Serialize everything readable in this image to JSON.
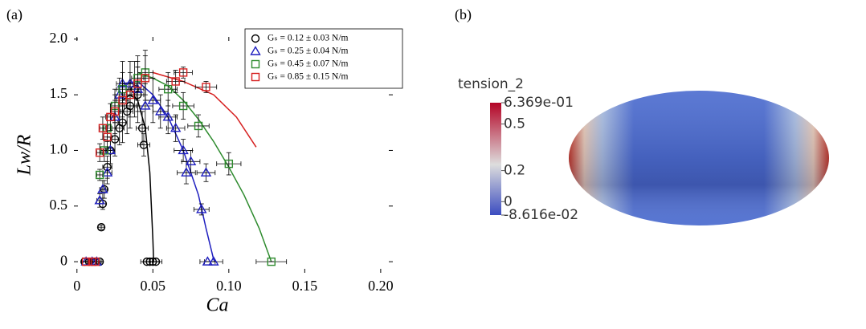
{
  "chart_data": [
    {
      "type": "scatter",
      "panel": "(a)",
      "xlabel": "Ca",
      "ylabel": "Lw/R",
      "xlim": [
        -0.002,
        0.208
      ],
      "ylim": [
        -0.1,
        2.02
      ],
      "xticks": [
        0,
        0.05,
        {
          "value": 0.1,
          "label": "0.10"
        },
        0.15,
        {
          "value": 0.2,
          "label": "0.20"
        }
      ],
      "yticks": [
        0,
        0.5,
        {
          "value": 1,
          "label": "1.0"
        },
        1.5,
        {
          "value": 2,
          "label": "2.0"
        }
      ],
      "legend": "upper right",
      "series": [
        {
          "name": "Gₛ = 0.12 ± 0.03 N/m",
          "color": "#000000",
          "marker": "circle",
          "x": [
            0.005,
            0.008,
            0.01,
            0.012,
            0.015,
            0.016,
            0.017,
            0.018,
            0.02,
            0.022,
            0.025,
            0.028,
            0.03,
            0.033,
            0.035,
            0.038,
            0.04,
            0.043,
            0.044,
            0.046,
            0.048,
            0.05,
            0.052
          ],
          "values": [
            0,
            0,
            0,
            0,
            0,
            0.31,
            0.52,
            0.65,
            0.85,
            1.0,
            1.1,
            1.2,
            1.25,
            1.35,
            1.4,
            1.55,
            1.5,
            1.2,
            1.05,
            0,
            0,
            0,
            0
          ],
          "xerr": [
            0.002,
            0.002,
            0.002,
            0.002,
            0.002,
            0.002,
            0.002,
            0.002,
            0.003,
            0.003,
            0.003,
            0.003,
            0.003,
            0.004,
            0.004,
            0.004,
            0.004,
            0.004,
            0.004,
            0.004,
            0.004,
            0.004,
            0.004
          ],
          "yerr": [
            0,
            0,
            0,
            0,
            0,
            0.02,
            0.05,
            0.08,
            0.1,
            0.12,
            0.15,
            0.15,
            0.18,
            0.2,
            0.2,
            0.25,
            0.25,
            0.15,
            0.1,
            0,
            0,
            0,
            0
          ]
        },
        {
          "name": "Gₛ = 0.25 ± 0.04 N/m",
          "color": "#1f1fbf",
          "marker": "triangle",
          "x": [
            0.006,
            0.01,
            0.013,
            0.015,
            0.017,
            0.02,
            0.022,
            0.025,
            0.028,
            0.03,
            0.035,
            0.04,
            0.045,
            0.05,
            0.055,
            0.06,
            0.065,
            0.07,
            0.072,
            0.075,
            0.085,
            0.082,
            0.086,
            0.09
          ],
          "values": [
            0,
            0,
            0,
            0.55,
            0.65,
            0.8,
            1.0,
            1.3,
            1.5,
            1.6,
            1.6,
            1.55,
            1.4,
            1.45,
            1.35,
            1.3,
            1.2,
            1.0,
            0.8,
            0.9,
            0.8,
            0.47,
            0,
            0
          ],
          "xerr": [
            0.003,
            0.003,
            0.003,
            0.002,
            0.002,
            0.003,
            0.003,
            0.003,
            0.003,
            0.004,
            0.004,
            0.004,
            0.005,
            0.005,
            0.005,
            0.006,
            0.006,
            0.006,
            0.006,
            0.006,
            0.006,
            0.005,
            0.005,
            0.006
          ],
          "yerr": [
            0,
            0,
            0,
            0.06,
            0.08,
            0.1,
            0.12,
            0.15,
            0.15,
            0.2,
            0.2,
            0.2,
            0.2,
            0.2,
            0.15,
            0.15,
            0.12,
            0.1,
            0.1,
            0.1,
            0.08,
            0.05,
            0,
            0
          ]
        },
        {
          "name": "Gₛ = 0.45 ± 0.07 N/m",
          "color": "#2e8b2e",
          "marker": "square",
          "x": [
            0.015,
            0.018,
            0.02,
            0.025,
            0.03,
            0.04,
            0.045,
            0.06,
            0.07,
            0.08,
            0.1,
            0.128
          ],
          "values": [
            0.78,
            1.0,
            1.2,
            1.4,
            1.55,
            1.65,
            1.7,
            1.55,
            1.4,
            1.22,
            0.88,
            0
          ],
          "xerr": [
            0.002,
            0.002,
            0.003,
            0.003,
            0.004,
            0.004,
            0.005,
            0.006,
            0.007,
            0.007,
            0.008,
            0.01
          ],
          "yerr": [
            0.05,
            0.1,
            0.12,
            0.15,
            0.15,
            0.2,
            0.2,
            0.15,
            0.12,
            0.1,
            0.1,
            0
          ]
        },
        {
          "name": "Gₛ = 0.85 ± 0.15 N/m",
          "color": "#d62020",
          "marker": "square",
          "x": [
            0.006,
            0.01,
            0.012,
            0.015,
            0.017,
            0.02,
            0.022,
            0.025,
            0.03,
            0.035,
            0.04,
            0.045,
            0.065,
            0.07,
            0.085
          ],
          "values": [
            0,
            0,
            0,
            0.98,
            1.2,
            1.12,
            1.3,
            1.35,
            1.45,
            1.5,
            1.6,
            1.65,
            1.62,
            1.7,
            1.57
          ],
          "xerr": [
            0.003,
            0.003,
            0.003,
            0.002,
            0.002,
            0.003,
            0.003,
            0.003,
            0.004,
            0.004,
            0.005,
            0.005,
            0.006,
            0.006,
            0.007
          ],
          "yerr": [
            0,
            0,
            0,
            0.08,
            0.1,
            0.1,
            0.12,
            0.15,
            0.15,
            0.2,
            0.2,
            0.2,
            0.1,
            0.05,
            0.05
          ]
        }
      ],
      "fits": [
        {
          "color": "#000000",
          "x": [
            0.03,
            0.035,
            0.04,
            0.045,
            0.048,
            0.05,
            0.0505
          ],
          "values": [
            1.45,
            1.5,
            1.45,
            1.2,
            0.8,
            0.2,
            0
          ]
        },
        {
          "color": "#1f1fbf",
          "x": [
            0.03,
            0.04,
            0.05,
            0.06,
            0.07,
            0.08,
            0.085,
            0.09,
            0.091
          ],
          "values": [
            1.6,
            1.62,
            1.5,
            1.3,
            1.0,
            0.6,
            0.3,
            0.02,
            0
          ]
        },
        {
          "color": "#2e8b2e",
          "x": [
            0.04,
            0.05,
            0.06,
            0.07,
            0.08,
            0.09,
            0.1,
            0.11,
            0.12,
            0.128
          ],
          "values": [
            1.7,
            1.65,
            1.58,
            1.45,
            1.28,
            1.08,
            0.85,
            0.6,
            0.3,
            0
          ]
        },
        {
          "color": "#d62020",
          "x": [
            0.05,
            0.07,
            0.09,
            0.105,
            0.118
          ],
          "values": [
            1.7,
            1.62,
            1.5,
            1.3,
            1.03
          ]
        }
      ]
    },
    {
      "type": "colormap",
      "panel": "(b)",
      "title": "tension_2",
      "clim": [
        -0.08616,
        0.6369
      ],
      "ticks": [
        {
          "value": 0.6369,
          "label": "6.369e-01"
        },
        0.5,
        0.2,
        0,
        {
          "value": -0.08616,
          "label": "-8.616e-02"
        }
      ]
    }
  ]
}
